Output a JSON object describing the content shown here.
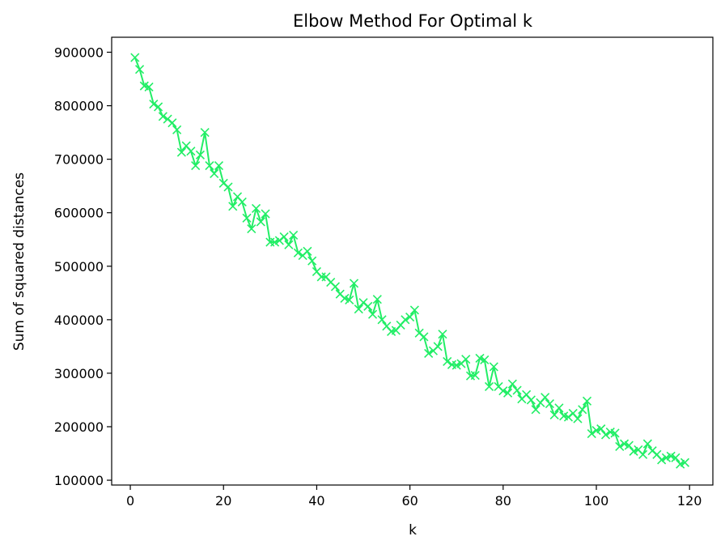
{
  "chart_data": {
    "type": "line",
    "title": "Elbow Method For Optimal k",
    "xlabel": "k",
    "ylabel": "Sum of squared distances",
    "xlim": [
      -4,
      125
    ],
    "ylim": [
      91000,
      928000
    ],
    "xticks": [
      0,
      20,
      40,
      60,
      80,
      100,
      120
    ],
    "yticks": [
      100000,
      200000,
      300000,
      400000,
      500000,
      600000,
      700000,
      800000,
      900000
    ],
    "grid": false,
    "line_color": "#22ee66",
    "marker": "x",
    "series": [
      {
        "x": [
          1,
          2,
          3,
          4,
          5,
          6,
          7,
          8,
          9,
          10,
          11,
          12,
          13,
          14,
          15,
          16,
          17,
          18,
          19,
          20,
          21,
          22,
          23,
          24,
          25,
          26,
          27,
          28,
          29,
          30,
          31,
          32,
          33,
          34,
          35,
          36,
          37,
          38,
          39,
          40,
          41,
          42,
          43,
          44,
          45,
          46,
          47,
          48,
          49,
          50,
          51,
          52,
          53,
          54,
          55,
          56,
          57,
          58,
          59,
          60,
          61,
          62,
          63,
          64,
          65,
          66,
          67,
          68,
          69,
          70,
          71,
          72,
          73,
          74,
          75,
          76,
          77,
          78,
          79,
          80,
          81,
          82,
          83,
          84,
          85,
          86,
          87,
          88,
          89,
          90,
          91,
          92,
          93,
          94,
          95,
          96,
          97,
          98,
          99,
          100,
          101,
          102,
          103,
          104,
          105,
          106,
          107,
          108,
          109,
          110,
          111,
          112,
          113,
          114,
          115,
          116,
          117,
          118,
          119
        ],
        "values": [
          890000,
          868000,
          837000,
          835000,
          803000,
          798000,
          780000,
          775000,
          768000,
          755000,
          713000,
          725000,
          715000,
          688000,
          708000,
          750000,
          688000,
          673000,
          688000,
          655000,
          648000,
          612000,
          630000,
          620000,
          590000,
          570000,
          608000,
          583000,
          598000,
          545000,
          545000,
          548000,
          555000,
          540000,
          558000,
          525000,
          520000,
          528000,
          510000,
          490000,
          480000,
          480000,
          470000,
          462000,
          448000,
          440000,
          437000,
          468000,
          420000,
          432000,
          425000,
          410000,
          438000,
          400000,
          388000,
          378000,
          380000,
          390000,
          400000,
          405000,
          418000,
          375000,
          368000,
          337000,
          342000,
          350000,
          373000,
          322000,
          316000,
          315000,
          318000,
          326000,
          295000,
          296000,
          328000,
          325000,
          275000,
          312000,
          275000,
          267000,
          263000,
          280000,
          268000,
          252000,
          260000,
          250000,
          232000,
          245000,
          255000,
          243000,
          222000,
          235000,
          220000,
          218000,
          225000,
          215000,
          232000,
          248000,
          187000,
          193000,
          196000,
          185000,
          190000,
          188000,
          163000,
          168000,
          165000,
          154000,
          157000,
          148000,
          168000,
          155000,
          148000,
          138000,
          142000,
          145000,
          142000,
          130000,
          133000
        ]
      }
    ]
  }
}
